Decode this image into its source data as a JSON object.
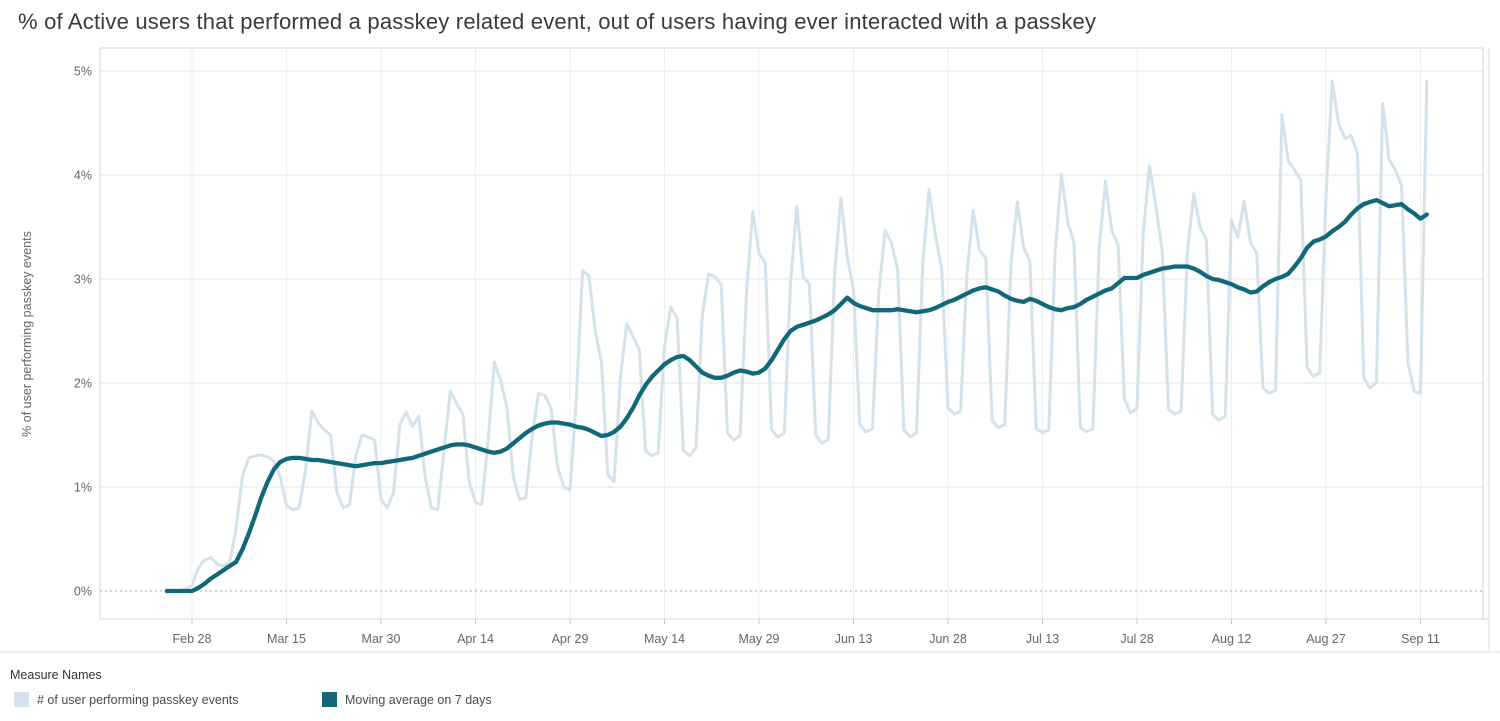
{
  "title": "% of Active users that performed a passkey related event, out of users having ever interacted with a passkey",
  "y_axis": {
    "title": "% of user performing passkey events",
    "tick_labels": [
      "0%",
      "1%",
      "2%",
      "3%",
      "4%",
      "5%"
    ]
  },
  "x_axis": {
    "tick_labels": [
      "Feb 28",
      "Mar 15",
      "Mar 30",
      "Apr 14",
      "Apr 29",
      "May 14",
      "May 29",
      "Jun 13",
      "Jun 28",
      "Jul 13",
      "Jul 28",
      "Aug 12",
      "Aug 27",
      "Sep 11"
    ]
  },
  "legend": {
    "title": "Measure Names",
    "items": [
      {
        "label": "# of user performing passkey events",
        "color": "#d4e3eb"
      },
      {
        "label": "Moving average on 7 days",
        "color": "#106879"
      }
    ]
  },
  "colors": {
    "raw_line": "#d4e3eb",
    "moving_average_line": "#106879",
    "gridline": "#e6e6e6",
    "zero_line": "#bbbbbb",
    "axis_border": "#d6d6d6",
    "tick_text": "#666666",
    "title_text": "#3b3b3b"
  },
  "chart_data": {
    "type": "line",
    "title": "% of Active users that performed a passkey related event, out of users having ever interacted with a passkey",
    "xlabel": "",
    "ylabel": "% of user performing passkey events",
    "ylim": [
      0,
      5.25
    ],
    "y_ticks_percent": [
      0,
      1,
      2,
      3,
      4,
      5
    ],
    "grid": "horizontal solid 1%-5%, dotted at 0%, faint vertical at date ticks",
    "legend_position": "bottom-left",
    "x_start_label": "Feb 24",
    "x_end_label": "Sep 12",
    "x_unit": "day",
    "x_tick_labels": [
      "Feb 28",
      "Mar 15",
      "Mar 30",
      "Apr 14",
      "Apr 29",
      "May 14",
      "May 29",
      "Jun 13",
      "Jun 28",
      "Jul 13",
      "Jul 28",
      "Aug 12",
      "Aug 27",
      "Sep 11"
    ],
    "x_tick_day_indices": [
      4,
      19,
      34,
      49,
      64,
      79,
      94,
      109,
      124,
      139,
      154,
      169,
      184,
      199
    ],
    "series": [
      {
        "name": "# of user performing passkey events",
        "color": "#d4e3eb",
        "unit": "percent",
        "values": [
          0.0,
          0.0,
          0.0,
          0.02,
          0.05,
          0.22,
          0.3,
          0.32,
          0.26,
          0.24,
          0.28,
          0.6,
          1.1,
          1.28,
          1.3,
          1.31,
          1.29,
          1.25,
          1.1,
          0.82,
          0.78,
          0.8,
          1.15,
          1.73,
          1.62,
          1.55,
          1.5,
          0.95,
          0.8,
          0.83,
          1.3,
          1.5,
          1.48,
          1.45,
          0.88,
          0.8,
          0.95,
          1.6,
          1.72,
          1.58,
          1.68,
          1.1,
          0.8,
          0.78,
          1.35,
          1.92,
          1.8,
          1.7,
          1.05,
          0.85,
          0.83,
          1.45,
          2.2,
          2.02,
          1.76,
          1.1,
          0.88,
          0.9,
          1.5,
          1.9,
          1.88,
          1.76,
          1.2,
          1.0,
          0.97,
          1.85,
          3.08,
          3.03,
          2.5,
          2.2,
          1.12,
          1.05,
          2.05,
          2.57,
          2.45,
          2.32,
          1.35,
          1.3,
          1.33,
          2.35,
          2.73,
          2.62,
          1.35,
          1.3,
          1.38,
          2.65,
          3.05,
          3.02,
          2.95,
          1.52,
          1.45,
          1.5,
          2.85,
          3.65,
          3.25,
          3.15,
          1.55,
          1.48,
          1.52,
          2.95,
          3.7,
          3.02,
          2.95,
          1.5,
          1.42,
          1.46,
          3.05,
          3.78,
          3.22,
          2.9,
          1.6,
          1.53,
          1.56,
          2.85,
          3.47,
          3.35,
          3.1,
          1.55,
          1.48,
          1.52,
          3.15,
          3.86,
          3.42,
          3.1,
          1.76,
          1.7,
          1.73,
          3.05,
          3.66,
          3.28,
          3.2,
          1.64,
          1.57,
          1.6,
          3.15,
          3.74,
          3.3,
          3.17,
          1.56,
          1.52,
          1.55,
          3.25,
          4.01,
          3.55,
          3.35,
          1.57,
          1.53,
          1.56,
          3.3,
          3.94,
          3.46,
          3.33,
          1.85,
          1.71,
          1.76,
          3.45,
          4.09,
          3.7,
          3.27,
          1.75,
          1.7,
          1.73,
          3.25,
          3.82,
          3.5,
          3.38,
          1.7,
          1.64,
          1.68,
          3.57,
          3.4,
          3.75,
          3.35,
          3.25,
          1.95,
          1.9,
          1.93,
          4.58,
          4.14,
          4.05,
          3.95,
          2.15,
          2.06,
          2.1,
          3.8,
          4.9,
          4.5,
          4.35,
          4.38,
          4.2,
          2.05,
          1.95,
          2.0,
          4.69,
          4.15,
          4.05,
          3.9,
          2.2,
          1.92,
          1.9,
          4.9
        ]
      },
      {
        "name": "Moving average on 7 days",
        "color": "#106879",
        "unit": "percent",
        "values": [
          0.0,
          0.0,
          0.0,
          0.0,
          0.0,
          0.03,
          0.07,
          0.12,
          0.16,
          0.2,
          0.24,
          0.28,
          0.4,
          0.55,
          0.72,
          0.9,
          1.05,
          1.17,
          1.24,
          1.27,
          1.28,
          1.28,
          1.27,
          1.26,
          1.26,
          1.25,
          1.24,
          1.23,
          1.22,
          1.21,
          1.2,
          1.21,
          1.22,
          1.23,
          1.23,
          1.24,
          1.25,
          1.26,
          1.27,
          1.28,
          1.3,
          1.32,
          1.34,
          1.36,
          1.38,
          1.4,
          1.41,
          1.41,
          1.4,
          1.38,
          1.36,
          1.34,
          1.33,
          1.34,
          1.37,
          1.42,
          1.47,
          1.52,
          1.56,
          1.59,
          1.61,
          1.62,
          1.62,
          1.61,
          1.6,
          1.58,
          1.57,
          1.55,
          1.52,
          1.49,
          1.5,
          1.53,
          1.58,
          1.66,
          1.76,
          1.88,
          1.98,
          2.06,
          2.12,
          2.18,
          2.22,
          2.25,
          2.26,
          2.22,
          2.16,
          2.1,
          2.07,
          2.05,
          2.05,
          2.07,
          2.1,
          2.12,
          2.11,
          2.09,
          2.1,
          2.14,
          2.22,
          2.32,
          2.42,
          2.5,
          2.54,
          2.56,
          2.58,
          2.6,
          2.63,
          2.66,
          2.7,
          2.76,
          2.82,
          2.77,
          2.74,
          2.72,
          2.7,
          2.7,
          2.7,
          2.7,
          2.71,
          2.7,
          2.69,
          2.68,
          2.69,
          2.7,
          2.72,
          2.75,
          2.78,
          2.8,
          2.83,
          2.86,
          2.89,
          2.91,
          2.92,
          2.9,
          2.88,
          2.84,
          2.81,
          2.79,
          2.78,
          2.81,
          2.79,
          2.76,
          2.73,
          2.71,
          2.7,
          2.72,
          2.73,
          2.76,
          2.8,
          2.83,
          2.86,
          2.89,
          2.91,
          2.96,
          3.01,
          3.01,
          3.01,
          3.04,
          3.06,
          3.08,
          3.1,
          3.11,
          3.12,
          3.12,
          3.12,
          3.1,
          3.07,
          3.03,
          3.0,
          2.99,
          2.97,
          2.95,
          2.92,
          2.9,
          2.87,
          2.88,
          2.93,
          2.97,
          3.0,
          3.02,
          3.05,
          3.12,
          3.2,
          3.3,
          3.36,
          3.38,
          3.41,
          3.46,
          3.5,
          3.55,
          3.62,
          3.68,
          3.72,
          3.74,
          3.76,
          3.73,
          3.7,
          3.71,
          3.72,
          3.67,
          3.63,
          3.58,
          3.62
        ]
      }
    ]
  }
}
